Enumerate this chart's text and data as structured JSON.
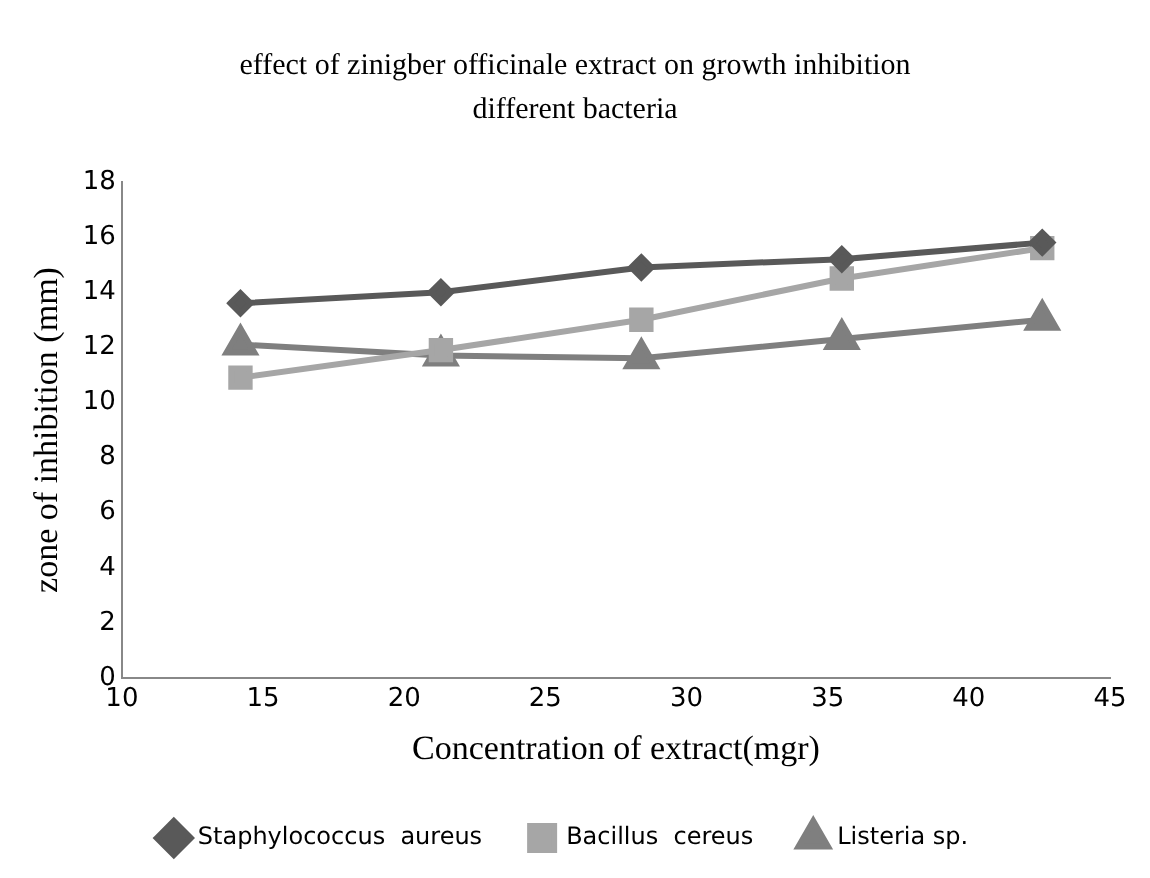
{
  "chart_data": {
    "type": "line",
    "title": "effect of zinigber officinale extract on growth inhibition different bacteria",
    "xlabel": "Concentration of extract(mgr)",
    "ylabel": "zone of inhibition (mm)",
    "x": [
      14.2,
      21.3,
      28.4,
      35.5,
      42.6
    ],
    "series": [
      {
        "name": "Staphylococcus  aureus",
        "color": "#595959",
        "values": [
          13.6,
          14.0,
          14.9,
          15.2,
          15.8
        ],
        "marker": "diamond"
      },
      {
        "name": "Bacillus  cereus",
        "color": "#a6a6a6",
        "values": [
          10.9,
          11.9,
          13.0,
          14.5,
          15.6
        ],
        "marker": "square"
      },
      {
        "name": "Listeria sp.",
        "color": "#7f7f7f",
        "values": [
          12.1,
          11.7,
          11.6,
          12.3,
          13.0
        ],
        "marker": "triangle"
      }
    ],
    "xlim": [
      10,
      45
    ],
    "xticks": [
      10,
      15,
      20,
      25,
      30,
      35,
      40,
      45
    ],
    "ylim": [
      0,
      18
    ],
    "yticks": [
      0,
      2,
      4,
      6,
      8,
      10,
      12,
      14,
      16,
      18
    ],
    "grid": false,
    "legend": "bottom"
  }
}
